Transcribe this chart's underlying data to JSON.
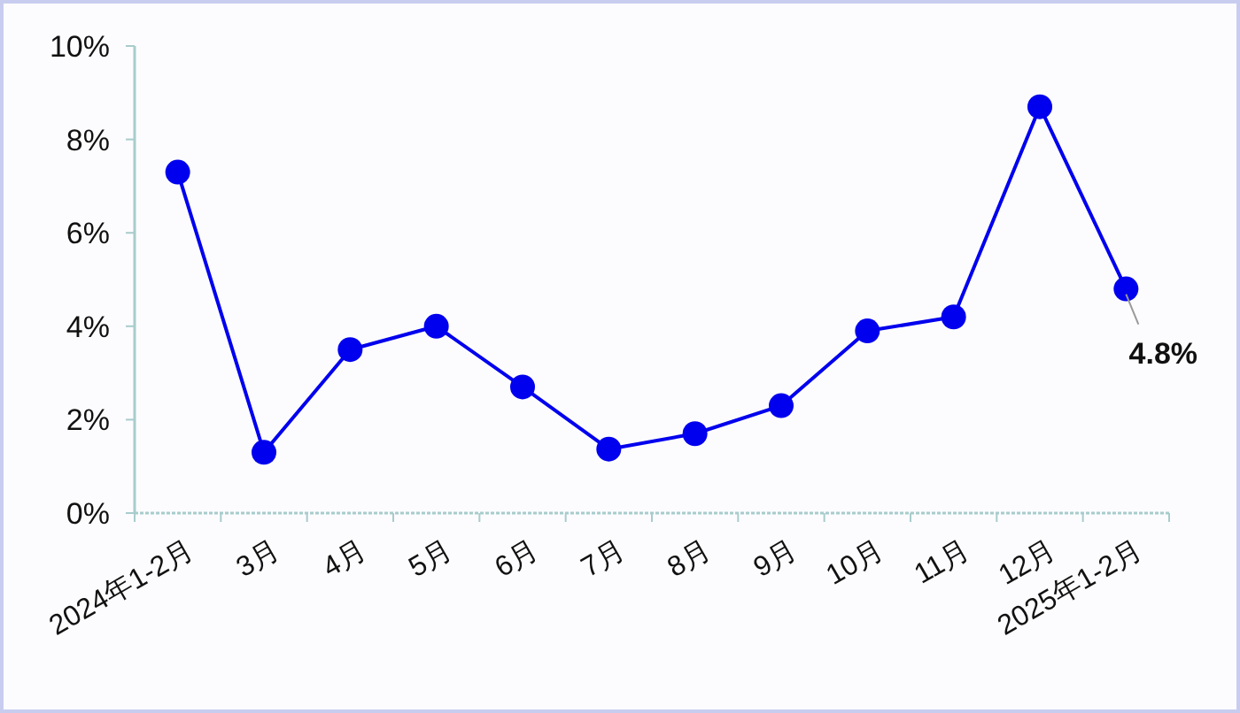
{
  "chart_data": {
    "type": "line",
    "categories": [
      "2024年1-2月",
      "3月",
      "4月",
      "5月",
      "6月",
      "7月",
      "8月",
      "9月",
      "10月",
      "11月",
      "12月",
      "2025年1-2月"
    ],
    "series": [
      {
        "color": "#0000ee",
        "values": [
          7.3,
          1.3,
          3.5,
          4.0,
          2.7,
          1.37,
          1.7,
          2.3,
          3.9,
          4.2,
          8.7,
          4.8
        ],
        "value_labels": [
          null,
          null,
          null,
          null,
          null,
          null,
          null,
          null,
          null,
          null,
          null,
          "4.8%"
        ]
      }
    ],
    "ylim": [
      0,
      10
    ],
    "yticks": [
      {
        "value": 0,
        "label": "0%"
      },
      {
        "value": 2,
        "label": "2%"
      },
      {
        "value": 4,
        "label": "4%"
      },
      {
        "value": 6,
        "label": "6%"
      },
      {
        "value": 8,
        "label": "8%"
      },
      {
        "value": 10,
        "label": "10%"
      }
    ],
    "marker": "circle",
    "line_style": "solid",
    "grid": false
  }
}
